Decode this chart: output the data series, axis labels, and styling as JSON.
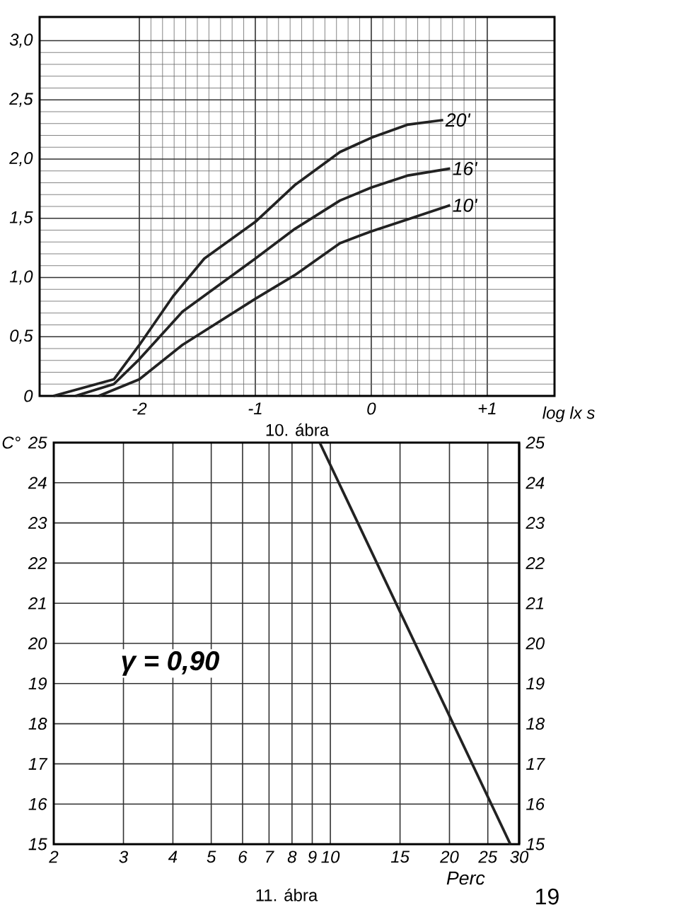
{
  "chart_data": [
    {
      "type": "line",
      "xlabel": "log lx s",
      "annotations": [
        "10. ábra"
      ],
      "xlim": [
        -2.86,
        1.58
      ],
      "ylim": [
        0,
        3.2
      ],
      "xticks": [
        -2,
        -1,
        0,
        {
          "value": 1,
          "label": "+1"
        }
      ],
      "yticks": [
        0,
        {
          "value": 0.5,
          "label": "0,5"
        },
        {
          "value": 1,
          "label": "1,0"
        },
        {
          "value": 1.5,
          "label": "1,5"
        },
        {
          "value": 2,
          "label": "2,0"
        },
        {
          "value": 2.5,
          "label": "2,5"
        },
        {
          "value": 3,
          "label": "3,0"
        }
      ],
      "grid": true,
      "series": [
        {
          "name": "20'",
          "color": "#222222",
          "x": [
            -2.74,
            -2.22,
            -2,
            -1.71,
            -1.44,
            -1,
            -0.66,
            -0.27,
            0,
            0.31,
            0.62
          ],
          "values": [
            0,
            0.14,
            0.43,
            0.84,
            1.16,
            1.47,
            1.78,
            2.06,
            2.18,
            2.29,
            2.33
          ]
        },
        {
          "name": "16'",
          "color": "#222222",
          "x": [
            -2.55,
            -2.22,
            -2,
            -1.63,
            -1,
            -0.66,
            -0.27,
            0,
            0.31,
            0.68
          ],
          "values": [
            0,
            0.1,
            0.31,
            0.71,
            1.16,
            1.41,
            1.65,
            1.76,
            1.86,
            1.92
          ]
        },
        {
          "name": "10'",
          "color": "#222222",
          "x": [
            -2.35,
            -2,
            -1.63,
            -1,
            -0.66,
            -0.27,
            0,
            0.31,
            0.68
          ],
          "values": [
            0,
            0.14,
            0.43,
            0.82,
            1.02,
            1.29,
            1.39,
            1.49,
            1.61
          ]
        }
      ]
    },
    {
      "type": "line",
      "xlabel": "Perc",
      "ylabel": "C°",
      "annotations": [
        "γ = 0,90",
        "11. ábra",
        "19"
      ],
      "log": "x",
      "xlim": [
        2,
        30
      ],
      "ylim": [
        15,
        25
      ],
      "xticks": [
        2,
        3,
        4,
        5,
        6,
        7,
        8,
        9,
        10,
        15,
        20,
        25,
        30
      ],
      "yticks": [
        15,
        16,
        17,
        18,
        19,
        20,
        21,
        22,
        23,
        24,
        25
      ],
      "y2lim": [
        15,
        25
      ],
      "y2ticks": [
        15,
        16,
        17,
        18,
        19,
        20,
        21,
        22,
        23,
        24,
        25
      ],
      "grid": true,
      "series": [
        {
          "color": "#222222",
          "x": [
            9.4,
            28.5
          ],
          "values": [
            25,
            15
          ]
        }
      ]
    }
  ]
}
